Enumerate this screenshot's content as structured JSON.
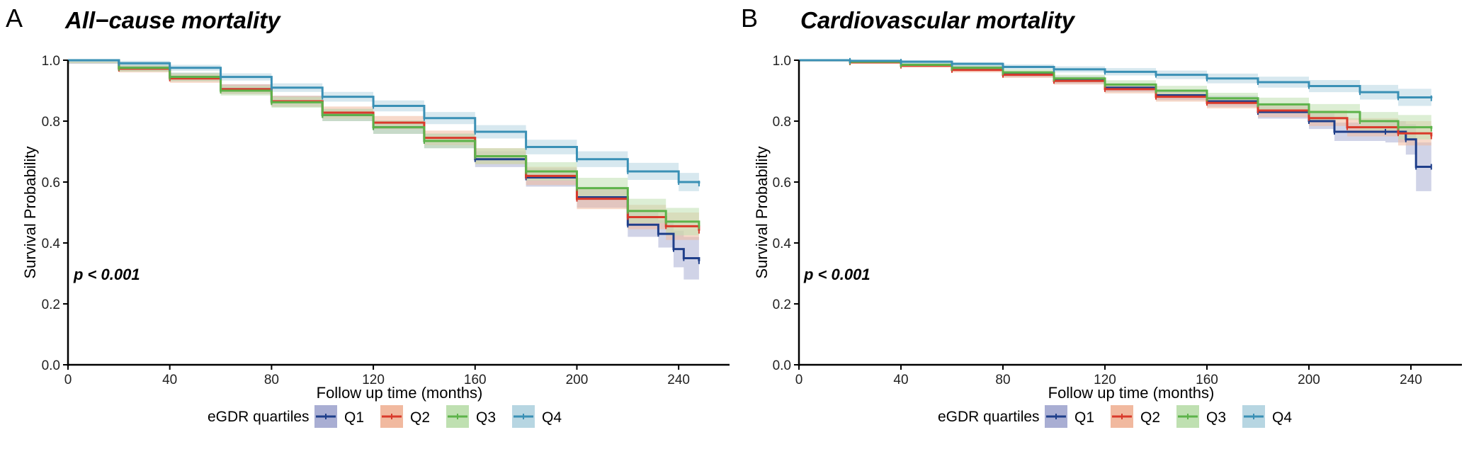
{
  "legend": {
    "title": "eGDR quartiles",
    "entries": [
      {
        "label": "Q1",
        "color": "#1f3f8a",
        "fill": "#a9aed3"
      },
      {
        "label": "Q2",
        "color": "#d93a2b",
        "fill": "#f1b99f"
      },
      {
        "label": "Q3",
        "color": "#5db34a",
        "fill": "#bfe0b1"
      },
      {
        "label": "Q4",
        "color": "#3a90b5",
        "fill": "#b7d6e2"
      }
    ]
  },
  "chart_data": [
    {
      "panel_label": "A",
      "title": "All−cause mortality",
      "type": "line",
      "xlabel": "Follow up time (months)",
      "ylabel": "Survival Probability",
      "xlim": [
        0,
        260
      ],
      "ylim": [
        0,
        1
      ],
      "x_ticks": [
        "0",
        "40",
        "80",
        "120",
        "160",
        "200",
        "240"
      ],
      "y_ticks": [
        "0.0",
        "0.2",
        "0.4",
        "0.6",
        "0.8",
        "1.0"
      ],
      "annotation": "p < 0.001",
      "series": [
        {
          "name": "Q1",
          "points": [
            [
              0,
              1.0
            ],
            [
              20,
              0.975
            ],
            [
              40,
              0.945
            ],
            [
              60,
              0.905
            ],
            [
              80,
              0.865
            ],
            [
              100,
              0.82
            ],
            [
              120,
              0.78
            ],
            [
              140,
              0.735
            ],
            [
              160,
              0.675
            ],
            [
              180,
              0.615
            ],
            [
              200,
              0.55
            ],
            [
              220,
              0.46
            ],
            [
              232,
              0.43
            ],
            [
              238,
              0.38
            ],
            [
              242,
              0.35
            ],
            [
              248,
              0.34
            ]
          ],
          "band": [
            0.012,
            0.012,
            0.014,
            0.016,
            0.018,
            0.02,
            0.022,
            0.024,
            0.026,
            0.03,
            0.034,
            0.04,
            0.045,
            0.06,
            0.07,
            0.08
          ]
        },
        {
          "name": "Q2",
          "points": [
            [
              0,
              1.0
            ],
            [
              20,
              0.972
            ],
            [
              40,
              0.94
            ],
            [
              60,
              0.905
            ],
            [
              80,
              0.865
            ],
            [
              100,
              0.828
            ],
            [
              120,
              0.795
            ],
            [
              140,
              0.745
            ],
            [
              160,
              0.685
            ],
            [
              180,
              0.62
            ],
            [
              200,
              0.545
            ],
            [
              220,
              0.485
            ],
            [
              235,
              0.455
            ],
            [
              248,
              0.44
            ]
          ],
          "band": [
            0.01,
            0.012,
            0.014,
            0.016,
            0.018,
            0.02,
            0.022,
            0.024,
            0.026,
            0.03,
            0.034,
            0.04,
            0.045,
            0.05
          ]
        },
        {
          "name": "Q3",
          "points": [
            [
              0,
              1.0
            ],
            [
              20,
              0.975
            ],
            [
              40,
              0.945
            ],
            [
              60,
              0.9
            ],
            [
              80,
              0.862
            ],
            [
              100,
              0.82
            ],
            [
              120,
              0.78
            ],
            [
              140,
              0.735
            ],
            [
              160,
              0.685
            ],
            [
              180,
              0.635
            ],
            [
              200,
              0.58
            ],
            [
              220,
              0.505
            ],
            [
              235,
              0.47
            ],
            [
              248,
              0.455
            ]
          ],
          "band": [
            0.01,
            0.012,
            0.014,
            0.016,
            0.018,
            0.02,
            0.022,
            0.024,
            0.026,
            0.03,
            0.034,
            0.04,
            0.045,
            0.05
          ]
        },
        {
          "name": "Q4",
          "points": [
            [
              0,
              1.0
            ],
            [
              20,
              0.99
            ],
            [
              40,
              0.975
            ],
            [
              60,
              0.945
            ],
            [
              80,
              0.91
            ],
            [
              100,
              0.88
            ],
            [
              120,
              0.85
            ],
            [
              140,
              0.81
            ],
            [
              160,
              0.765
            ],
            [
              180,
              0.715
            ],
            [
              200,
              0.675
            ],
            [
              220,
              0.635
            ],
            [
              240,
              0.6
            ],
            [
              248,
              0.595
            ]
          ],
          "band": [
            0.006,
            0.008,
            0.01,
            0.012,
            0.014,
            0.016,
            0.018,
            0.02,
            0.022,
            0.024,
            0.026,
            0.028,
            0.03,
            0.032
          ]
        }
      ]
    },
    {
      "panel_label": "B",
      "title": "Cardiovascular mortality",
      "type": "line",
      "xlabel": "Follow up time (months)",
      "ylabel": "Survival Probability",
      "xlim": [
        0,
        260
      ],
      "ylim": [
        0,
        1
      ],
      "x_ticks": [
        "0",
        "40",
        "80",
        "120",
        "160",
        "200",
        "240"
      ],
      "y_ticks": [
        "0.0",
        "0.2",
        "0.4",
        "0.6",
        "0.8",
        "1.0"
      ],
      "annotation": "p < 0.001",
      "series": [
        {
          "name": "Q1",
          "points": [
            [
              0,
              1.0
            ],
            [
              20,
              0.995
            ],
            [
              40,
              0.985
            ],
            [
              60,
              0.975
            ],
            [
              80,
              0.955
            ],
            [
              100,
              0.935
            ],
            [
              120,
              0.91
            ],
            [
              140,
              0.885
            ],
            [
              160,
              0.865
            ],
            [
              180,
              0.83
            ],
            [
              200,
              0.8
            ],
            [
              210,
              0.765
            ],
            [
              230,
              0.765
            ],
            [
              238,
              0.74
            ],
            [
              242,
              0.65
            ],
            [
              248,
              0.65
            ]
          ],
          "band": [
            0.004,
            0.005,
            0.006,
            0.008,
            0.01,
            0.012,
            0.014,
            0.016,
            0.018,
            0.022,
            0.026,
            0.03,
            0.035,
            0.05,
            0.08,
            0.12
          ]
        },
        {
          "name": "Q2",
          "points": [
            [
              0,
              1.0
            ],
            [
              20,
              0.993
            ],
            [
              40,
              0.982
            ],
            [
              60,
              0.968
            ],
            [
              80,
              0.952
            ],
            [
              100,
              0.932
            ],
            [
              120,
              0.905
            ],
            [
              140,
              0.88
            ],
            [
              160,
              0.86
            ],
            [
              180,
              0.835
            ],
            [
              200,
              0.81
            ],
            [
              215,
              0.78
            ],
            [
              235,
              0.76
            ],
            [
              248,
              0.75
            ]
          ],
          "band": [
            0.004,
            0.005,
            0.006,
            0.008,
            0.01,
            0.012,
            0.014,
            0.016,
            0.018,
            0.022,
            0.026,
            0.03,
            0.04,
            0.05
          ]
        },
        {
          "name": "Q3",
          "points": [
            [
              0,
              1.0
            ],
            [
              20,
              0.995
            ],
            [
              40,
              0.985
            ],
            [
              60,
              0.975
            ],
            [
              80,
              0.96
            ],
            [
              100,
              0.94
            ],
            [
              120,
              0.92
            ],
            [
              140,
              0.9
            ],
            [
              160,
              0.875
            ],
            [
              180,
              0.855
            ],
            [
              200,
              0.83
            ],
            [
              220,
              0.8
            ],
            [
              235,
              0.78
            ],
            [
              248,
              0.775
            ]
          ],
          "band": [
            0.004,
            0.005,
            0.006,
            0.008,
            0.01,
            0.012,
            0.014,
            0.016,
            0.018,
            0.022,
            0.026,
            0.03,
            0.04,
            0.05
          ]
        },
        {
          "name": "Q4",
          "points": [
            [
              0,
              1.0
            ],
            [
              20,
              0.998
            ],
            [
              40,
              0.995
            ],
            [
              60,
              0.988
            ],
            [
              80,
              0.978
            ],
            [
              100,
              0.97
            ],
            [
              120,
              0.962
            ],
            [
              140,
              0.952
            ],
            [
              160,
              0.94
            ],
            [
              180,
              0.928
            ],
            [
              200,
              0.915
            ],
            [
              220,
              0.895
            ],
            [
              235,
              0.878
            ],
            [
              248,
              0.875
            ]
          ],
          "band": [
            0.003,
            0.004,
            0.005,
            0.006,
            0.008,
            0.01,
            0.012,
            0.014,
            0.016,
            0.018,
            0.02,
            0.024,
            0.028,
            0.03
          ]
        }
      ]
    }
  ]
}
